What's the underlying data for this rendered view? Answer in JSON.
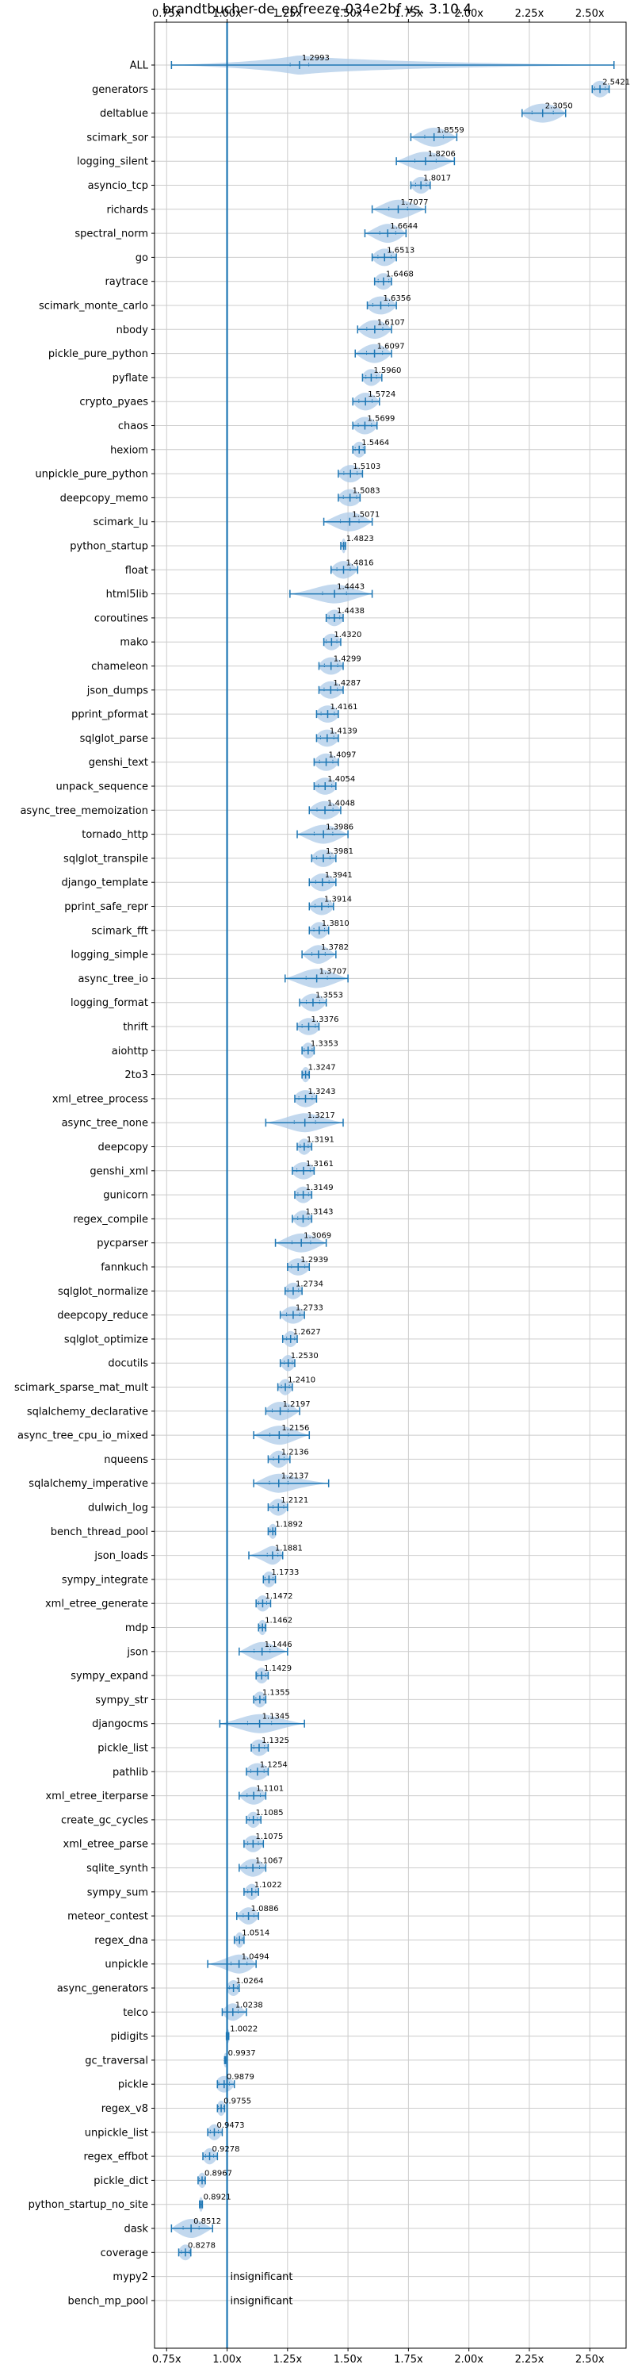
{
  "chart_data": {
    "type": "violin",
    "title": "brandtbucher-de_epfreeze-034e2bf vs. 3.10.4",
    "xlabel": "",
    "ylabel": "",
    "xlim": [
      0.7,
      2.65
    ],
    "x_ticks": [
      0.75,
      1.0,
      1.25,
      1.5,
      1.75,
      2.0,
      2.25,
      2.5
    ],
    "x_tick_labels": [
      "0.75x",
      "1.00x",
      "1.25x",
      "1.50x",
      "1.75x",
      "2.00x",
      "2.25x",
      "2.50x"
    ],
    "reference_line": 1.0,
    "grid": true,
    "insignificant_text": "insignificant",
    "benchmarks": [
      {
        "name": "ALL",
        "value": 1.2993,
        "label": "1.2993",
        "min": 0.77,
        "max": 2.6,
        "spread": 0.07
      },
      {
        "name": "generators",
        "value": 2.5421,
        "label": "2.5421",
        "min": 2.51,
        "max": 2.58,
        "spread": 0.04
      },
      {
        "name": "deltablue",
        "value": 2.305,
        "label": "2.3050",
        "min": 2.22,
        "max": 2.4,
        "spread": 0.08
      },
      {
        "name": "scimark_sor",
        "value": 1.8559,
        "label": "1.8559",
        "min": 1.76,
        "max": 1.95,
        "spread": 0.07
      },
      {
        "name": "logging_silent",
        "value": 1.8206,
        "label": "1.8206",
        "min": 1.7,
        "max": 1.94,
        "spread": 0.08
      },
      {
        "name": "asyncio_tcp",
        "value": 1.8017,
        "label": "1.8017",
        "min": 1.76,
        "max": 1.84,
        "spread": 0.04
      },
      {
        "name": "richards",
        "value": 1.7077,
        "label": "1.7077",
        "min": 1.6,
        "max": 1.82,
        "spread": 0.07
      },
      {
        "name": "spectral_norm",
        "value": 1.6644,
        "label": "1.6644",
        "min": 1.57,
        "max": 1.74,
        "spread": 0.06
      },
      {
        "name": "go",
        "value": 1.6513,
        "label": "1.6513",
        "min": 1.6,
        "max": 1.7,
        "spread": 0.05
      },
      {
        "name": "raytrace",
        "value": 1.6468,
        "label": "1.6468",
        "min": 1.61,
        "max": 1.68,
        "spread": 0.04
      },
      {
        "name": "scimark_monte_carlo",
        "value": 1.6356,
        "label": "1.6356",
        "min": 1.58,
        "max": 1.7,
        "spread": 0.06
      },
      {
        "name": "nbody",
        "value": 1.6107,
        "label": "1.6107",
        "min": 1.54,
        "max": 1.68,
        "spread": 0.06
      },
      {
        "name": "pickle_pure_python",
        "value": 1.6097,
        "label": "1.6097",
        "min": 1.53,
        "max": 1.68,
        "spread": 0.06
      },
      {
        "name": "pyflate",
        "value": 1.596,
        "label": "1.5960",
        "min": 1.56,
        "max": 1.64,
        "spread": 0.04
      },
      {
        "name": "crypto_pyaes",
        "value": 1.5724,
        "label": "1.5724",
        "min": 1.52,
        "max": 1.63,
        "spread": 0.05
      },
      {
        "name": "chaos",
        "value": 1.5699,
        "label": "1.5699",
        "min": 1.52,
        "max": 1.62,
        "spread": 0.05
      },
      {
        "name": "hexiom",
        "value": 1.5464,
        "label": "1.5464",
        "min": 1.52,
        "max": 1.57,
        "spread": 0.03
      },
      {
        "name": "unpickle_pure_python",
        "value": 1.5103,
        "label": "1.5103",
        "min": 1.46,
        "max": 1.56,
        "spread": 0.05
      },
      {
        "name": "deepcopy_memo",
        "value": 1.5083,
        "label": "1.5083",
        "min": 1.46,
        "max": 1.55,
        "spread": 0.05
      },
      {
        "name": "scimark_lu",
        "value": 1.5071,
        "label": "1.5071",
        "min": 1.4,
        "max": 1.6,
        "spread": 0.07
      },
      {
        "name": "python_startup",
        "value": 1.4823,
        "label": "1.4823",
        "min": 1.47,
        "max": 1.49,
        "spread": 0.01
      },
      {
        "name": "float",
        "value": 1.4816,
        "label": "1.4816",
        "min": 1.43,
        "max": 1.54,
        "spread": 0.05
      },
      {
        "name": "html5lib",
        "value": 1.4443,
        "label": "1.4443",
        "min": 1.26,
        "max": 1.6,
        "spread": 0.09
      },
      {
        "name": "coroutines",
        "value": 1.4438,
        "label": "1.4438",
        "min": 1.41,
        "max": 1.48,
        "spread": 0.04
      },
      {
        "name": "mako",
        "value": 1.432,
        "label": "1.4320",
        "min": 1.4,
        "max": 1.47,
        "spread": 0.04
      },
      {
        "name": "chameleon",
        "value": 1.4299,
        "label": "1.4299",
        "min": 1.38,
        "max": 1.48,
        "spread": 0.05
      },
      {
        "name": "json_dumps",
        "value": 1.4287,
        "label": "1.4287",
        "min": 1.38,
        "max": 1.48,
        "spread": 0.05
      },
      {
        "name": "pprint_pformat",
        "value": 1.4161,
        "label": "1.4161",
        "min": 1.37,
        "max": 1.46,
        "spread": 0.05
      },
      {
        "name": "sqlglot_parse",
        "value": 1.4139,
        "label": "1.4139",
        "min": 1.37,
        "max": 1.46,
        "spread": 0.05
      },
      {
        "name": "genshi_text",
        "value": 1.4097,
        "label": "1.4097",
        "min": 1.36,
        "max": 1.46,
        "spread": 0.05
      },
      {
        "name": "unpack_sequence",
        "value": 1.4054,
        "label": "1.4054",
        "min": 1.36,
        "max": 1.45,
        "spread": 0.05
      },
      {
        "name": "async_tree_memoization",
        "value": 1.4048,
        "label": "1.4048",
        "min": 1.34,
        "max": 1.47,
        "spread": 0.06
      },
      {
        "name": "tornado_http",
        "value": 1.3986,
        "label": "1.3986",
        "min": 1.29,
        "max": 1.5,
        "spread": 0.07
      },
      {
        "name": "sqlglot_transpile",
        "value": 1.3981,
        "label": "1.3981",
        "min": 1.35,
        "max": 1.45,
        "spread": 0.05
      },
      {
        "name": "django_template",
        "value": 1.3941,
        "label": "1.3941",
        "min": 1.34,
        "max": 1.45,
        "spread": 0.05
      },
      {
        "name": "pprint_safe_repr",
        "value": 1.3914,
        "label": "1.3914",
        "min": 1.34,
        "max": 1.44,
        "spread": 0.05
      },
      {
        "name": "scimark_fft",
        "value": 1.381,
        "label": "1.3810",
        "min": 1.34,
        "max": 1.42,
        "spread": 0.04
      },
      {
        "name": "logging_simple",
        "value": 1.3782,
        "label": "1.3782",
        "min": 1.31,
        "max": 1.45,
        "spread": 0.05
      },
      {
        "name": "async_tree_io",
        "value": 1.3707,
        "label": "1.3707",
        "min": 1.24,
        "max": 1.5,
        "spread": 0.08
      },
      {
        "name": "logging_format",
        "value": 1.3553,
        "label": "1.3553",
        "min": 1.3,
        "max": 1.41,
        "spread": 0.05
      },
      {
        "name": "thrift",
        "value": 1.3376,
        "label": "1.3376",
        "min": 1.29,
        "max": 1.38,
        "spread": 0.05
      },
      {
        "name": "aiohttp",
        "value": 1.3353,
        "label": "1.3353",
        "min": 1.31,
        "max": 1.36,
        "spread": 0.03
      },
      {
        "name": "2to3",
        "value": 1.3247,
        "label": "1.3247",
        "min": 1.31,
        "max": 1.34,
        "spread": 0.02
      },
      {
        "name": "xml_etree_process",
        "value": 1.3243,
        "label": "1.3243",
        "min": 1.28,
        "max": 1.37,
        "spread": 0.05
      },
      {
        "name": "async_tree_none",
        "value": 1.3217,
        "label": "1.3217",
        "min": 1.16,
        "max": 1.48,
        "spread": 0.08
      },
      {
        "name": "deepcopy",
        "value": 1.3191,
        "label": "1.3191",
        "min": 1.29,
        "max": 1.35,
        "spread": 0.03
      },
      {
        "name": "genshi_xml",
        "value": 1.3161,
        "label": "1.3161",
        "min": 1.27,
        "max": 1.36,
        "spread": 0.05
      },
      {
        "name": "gunicorn",
        "value": 1.3149,
        "label": "1.3149",
        "min": 1.28,
        "max": 1.35,
        "spread": 0.04
      },
      {
        "name": "regex_compile",
        "value": 1.3143,
        "label": "1.3143",
        "min": 1.27,
        "max": 1.35,
        "spread": 0.04
      },
      {
        "name": "pycparser",
        "value": 1.3069,
        "label": "1.3069",
        "min": 1.2,
        "max": 1.41,
        "spread": 0.07
      },
      {
        "name": "fannkuch",
        "value": 1.2939,
        "label": "1.2939",
        "min": 1.25,
        "max": 1.34,
        "spread": 0.05
      },
      {
        "name": "sqlglot_normalize",
        "value": 1.2734,
        "label": "1.2734",
        "min": 1.24,
        "max": 1.31,
        "spread": 0.04
      },
      {
        "name": "deepcopy_reduce",
        "value": 1.2733,
        "label": "1.2733",
        "min": 1.22,
        "max": 1.32,
        "spread": 0.05
      },
      {
        "name": "sqlglot_optimize",
        "value": 1.2627,
        "label": "1.2627",
        "min": 1.23,
        "max": 1.29,
        "spread": 0.03
      },
      {
        "name": "docutils",
        "value": 1.253,
        "label": "1.2530",
        "min": 1.22,
        "max": 1.28,
        "spread": 0.03
      },
      {
        "name": "scimark_sparse_mat_mult",
        "value": 1.241,
        "label": "1.2410",
        "min": 1.21,
        "max": 1.27,
        "spread": 0.03
      },
      {
        "name": "sqlalchemy_declarative",
        "value": 1.2197,
        "label": "1.2197",
        "min": 1.16,
        "max": 1.3,
        "spread": 0.06
      },
      {
        "name": "async_tree_cpu_io_mixed",
        "value": 1.2156,
        "label": "1.2156",
        "min": 1.11,
        "max": 1.34,
        "spread": 0.07
      },
      {
        "name": "nqueens",
        "value": 1.2136,
        "label": "1.2136",
        "min": 1.17,
        "max": 1.26,
        "spread": 0.04
      },
      {
        "name": "sqlalchemy_imperative",
        "value": 1.2137,
        "label": "1.2137",
        "min": 1.11,
        "max": 1.42,
        "spread": 0.07
      },
      {
        "name": "dulwich_log",
        "value": 1.2121,
        "label": "1.2121",
        "min": 1.17,
        "max": 1.25,
        "spread": 0.04
      },
      {
        "name": "bench_thread_pool",
        "value": 1.1892,
        "label": "1.1892",
        "min": 1.17,
        "max": 1.2,
        "spread": 0.02
      },
      {
        "name": "json_loads",
        "value": 1.1881,
        "label": "1.1881",
        "min": 1.09,
        "max": 1.23,
        "spread": 0.04
      },
      {
        "name": "sympy_integrate",
        "value": 1.1733,
        "label": "1.1733",
        "min": 1.15,
        "max": 1.2,
        "spread": 0.03
      },
      {
        "name": "xml_etree_generate",
        "value": 1.1472,
        "label": "1.1472",
        "min": 1.12,
        "max": 1.18,
        "spread": 0.03
      },
      {
        "name": "mdp",
        "value": 1.1462,
        "label": "1.1462",
        "min": 1.13,
        "max": 1.16,
        "spread": 0.02
      },
      {
        "name": "json",
        "value": 1.1446,
        "label": "1.1446",
        "min": 1.05,
        "max": 1.25,
        "spread": 0.06
      },
      {
        "name": "sympy_expand",
        "value": 1.1429,
        "label": "1.1429",
        "min": 1.12,
        "max": 1.17,
        "spread": 0.03
      },
      {
        "name": "sympy_str",
        "value": 1.1355,
        "label": "1.1355",
        "min": 1.11,
        "max": 1.16,
        "spread": 0.03
      },
      {
        "name": "djangocms",
        "value": 1.1345,
        "label": "1.1345",
        "min": 0.97,
        "max": 1.32,
        "spread": 0.09
      },
      {
        "name": "pickle_list",
        "value": 1.1325,
        "label": "1.1325",
        "min": 1.1,
        "max": 1.17,
        "spread": 0.04
      },
      {
        "name": "pathlib",
        "value": 1.1254,
        "label": "1.1254",
        "min": 1.08,
        "max": 1.17,
        "spread": 0.05
      },
      {
        "name": "xml_etree_iterparse",
        "value": 1.1101,
        "label": "1.1101",
        "min": 1.05,
        "max": 1.16,
        "spread": 0.05
      },
      {
        "name": "create_gc_cycles",
        "value": 1.1085,
        "label": "1.1085",
        "min": 1.08,
        "max": 1.14,
        "spread": 0.03
      },
      {
        "name": "xml_etree_parse",
        "value": 1.1075,
        "label": "1.1075",
        "min": 1.07,
        "max": 1.15,
        "spread": 0.04
      },
      {
        "name": "sqlite_synth",
        "value": 1.1067,
        "label": "1.1067",
        "min": 1.05,
        "max": 1.16,
        "spread": 0.05
      },
      {
        "name": "sympy_sum",
        "value": 1.1022,
        "label": "1.1022",
        "min": 1.07,
        "max": 1.13,
        "spread": 0.03
      },
      {
        "name": "meteor_contest",
        "value": 1.0886,
        "label": "1.0886",
        "min": 1.04,
        "max": 1.13,
        "spread": 0.04
      },
      {
        "name": "regex_dna",
        "value": 1.0514,
        "label": "1.0514",
        "min": 1.03,
        "max": 1.07,
        "spread": 0.02
      },
      {
        "name": "unpickle",
        "value": 1.0494,
        "label": "1.0494",
        "min": 0.92,
        "max": 1.12,
        "spread": 0.06
      },
      {
        "name": "async_generators",
        "value": 1.0264,
        "label": "1.0264",
        "min": 1.0,
        "max": 1.05,
        "spread": 0.03
      },
      {
        "name": "telco",
        "value": 1.0238,
        "label": "1.0238",
        "min": 0.98,
        "max": 1.08,
        "spread": 0.04
      },
      {
        "name": "pidigits",
        "value": 1.0022,
        "label": "1.0022",
        "min": 0.997,
        "max": 1.007,
        "spread": 0.01
      },
      {
        "name": "gc_traversal",
        "value": 0.9937,
        "label": "0.9937",
        "min": 0.99,
        "max": 1.0,
        "spread": 0.01
      },
      {
        "name": "pickle",
        "value": 0.9879,
        "label": "0.9879",
        "min": 0.96,
        "max": 1.03,
        "spread": 0.04
      },
      {
        "name": "regex_v8",
        "value": 0.9755,
        "label": "0.9755",
        "min": 0.96,
        "max": 0.99,
        "spread": 0.02
      },
      {
        "name": "unpickle_list",
        "value": 0.9473,
        "label": "0.9473",
        "min": 0.92,
        "max": 0.98,
        "spread": 0.03
      },
      {
        "name": "regex_effbot",
        "value": 0.9278,
        "label": "0.9278",
        "min": 0.9,
        "max": 0.96,
        "spread": 0.03
      },
      {
        "name": "pickle_dict",
        "value": 0.8967,
        "label": "0.8967",
        "min": 0.88,
        "max": 0.91,
        "spread": 0.02
      },
      {
        "name": "python_startup_no_site",
        "value": 0.8921,
        "label": "0.8921",
        "min": 0.886,
        "max": 0.898,
        "spread": 0.01
      },
      {
        "name": "dask",
        "value": 0.8512,
        "label": "0.8512",
        "min": 0.77,
        "max": 0.94,
        "spread": 0.06
      },
      {
        "name": "coverage",
        "value": 0.8278,
        "label": "0.8278",
        "min": 0.8,
        "max": 0.85,
        "spread": 0.03
      },
      {
        "name": "mypy2",
        "value": null,
        "label": "",
        "insignificant": true
      },
      {
        "name": "bench_mp_pool",
        "value": null,
        "label": "",
        "insignificant": true
      }
    ],
    "colors": {
      "violin": "#aecbe8",
      "accent": "#1f77b4",
      "grid": "#cccccc",
      "axis": "#000000"
    }
  }
}
